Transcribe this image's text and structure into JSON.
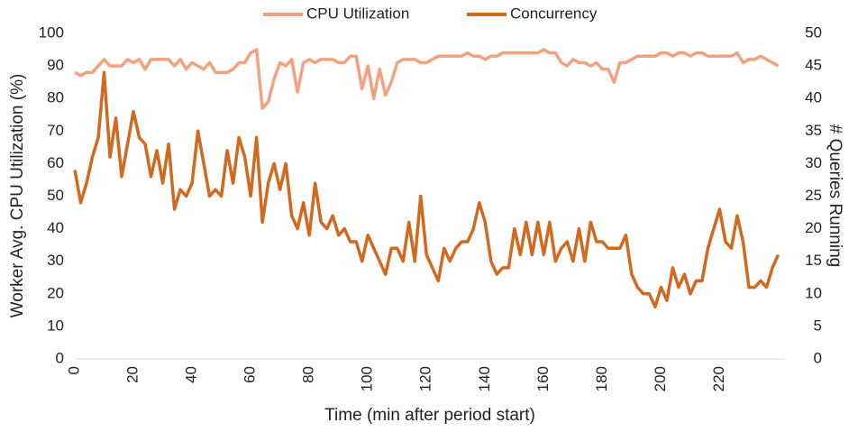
{
  "chart_data": {
    "type": "line",
    "x_label": "Time (min after period start)",
    "y_label": "Worker Avg. CPU Utilization (%)",
    "y2_label": "# Queries Running",
    "xlim": [
      0,
      242
    ],
    "xticks": [
      0,
      20,
      40,
      60,
      80,
      100,
      120,
      140,
      160,
      180,
      200,
      220
    ],
    "ylim": [
      0,
      100
    ],
    "yticks": [
      0,
      10,
      20,
      30,
      40,
      50,
      60,
      70,
      80,
      90,
      100
    ],
    "y2lim": [
      0,
      50
    ],
    "y2ticks": [
      0,
      5,
      10,
      15,
      20,
      25,
      30,
      35,
      40,
      45,
      50
    ],
    "grid": false,
    "legend": "top",
    "x": [
      0,
      2,
      4,
      6,
      8,
      10,
      12,
      14,
      16,
      18,
      20,
      22,
      24,
      26,
      28,
      30,
      32,
      34,
      36,
      38,
      40,
      42,
      44,
      46,
      48,
      50,
      52,
      54,
      56,
      58,
      60,
      62,
      64,
      66,
      68,
      70,
      72,
      74,
      76,
      78,
      80,
      82,
      84,
      86,
      88,
      90,
      92,
      94,
      96,
      98,
      100,
      102,
      104,
      106,
      108,
      110,
      112,
      114,
      116,
      118,
      120,
      122,
      124,
      126,
      128,
      130,
      132,
      134,
      136,
      138,
      140,
      142,
      144,
      146,
      148,
      150,
      152,
      154,
      156,
      158,
      160,
      162,
      164,
      166,
      168,
      170,
      172,
      174,
      176,
      178,
      180,
      182,
      184,
      186,
      188,
      190,
      192,
      194,
      196,
      198,
      200,
      202,
      204,
      206,
      208,
      210,
      212,
      214,
      216,
      218,
      220,
      222,
      224,
      226,
      228,
      230,
      232,
      234,
      236,
      238,
      240
    ],
    "series": [
      {
        "name": "CPU Utilization",
        "color": "#f2a27e",
        "axis": "y",
        "values": [
          88,
          87,
          88,
          88,
          90,
          92,
          90,
          90,
          90,
          92,
          91,
          92,
          89,
          92,
          92,
          92,
          92,
          90,
          92,
          89,
          91,
          90,
          89,
          91,
          88,
          88,
          88,
          89,
          91,
          91,
          94,
          95,
          77,
          79,
          86,
          91,
          90,
          92,
          82,
          91,
          92,
          91,
          92,
          92,
          92,
          91,
          91,
          93,
          93,
          83,
          90,
          80,
          89,
          81,
          85,
          91,
          92,
          92,
          92,
          91,
          91,
          92,
          93,
          93,
          93,
          93,
          93,
          94,
          93,
          93,
          92,
          93,
          93,
          94,
          94,
          94,
          94,
          94,
          94,
          94,
          95,
          94,
          94,
          91,
          90,
          92,
          91,
          91,
          90,
          91,
          89,
          89,
          85,
          91,
          91,
          92,
          93,
          93,
          93,
          93,
          94,
          94,
          93,
          94,
          94,
          93,
          94,
          94,
          93,
          93,
          93,
          93,
          93,
          94,
          91,
          92,
          92,
          93,
          92,
          91,
          90
        ]
      },
      {
        "name": "Concurrency",
        "color": "#d2691f",
        "axis": "y2",
        "values": [
          29,
          24,
          27,
          31,
          34,
          44,
          31,
          37,
          28,
          33,
          38,
          34,
          33,
          28,
          32,
          27,
          33,
          23,
          26,
          25,
          27,
          35,
          30,
          25,
          26,
          25,
          32,
          27,
          34,
          31,
          25,
          34,
          21,
          27,
          30,
          26,
          30,
          22,
          20,
          24,
          19,
          27,
          21,
          20,
          22,
          19,
          20,
          18,
          18,
          15,
          19,
          17,
          15,
          13,
          17,
          17,
          15,
          21,
          15,
          25,
          16,
          14,
          12,
          17,
          15,
          17,
          18,
          18,
          20,
          24,
          21,
          15,
          13,
          14,
          14,
          20,
          16,
          21,
          16,
          21,
          16,
          21,
          15,
          17,
          18,
          15,
          20,
          15,
          21,
          18,
          18,
          17,
          17,
          17,
          19,
          13,
          11,
          10,
          10,
          8,
          11,
          9,
          14,
          11,
          13,
          10,
          12,
          12,
          17,
          20,
          23,
          18,
          17,
          22,
          18,
          11,
          11,
          12,
          11,
          14,
          16
        ]
      }
    ]
  }
}
